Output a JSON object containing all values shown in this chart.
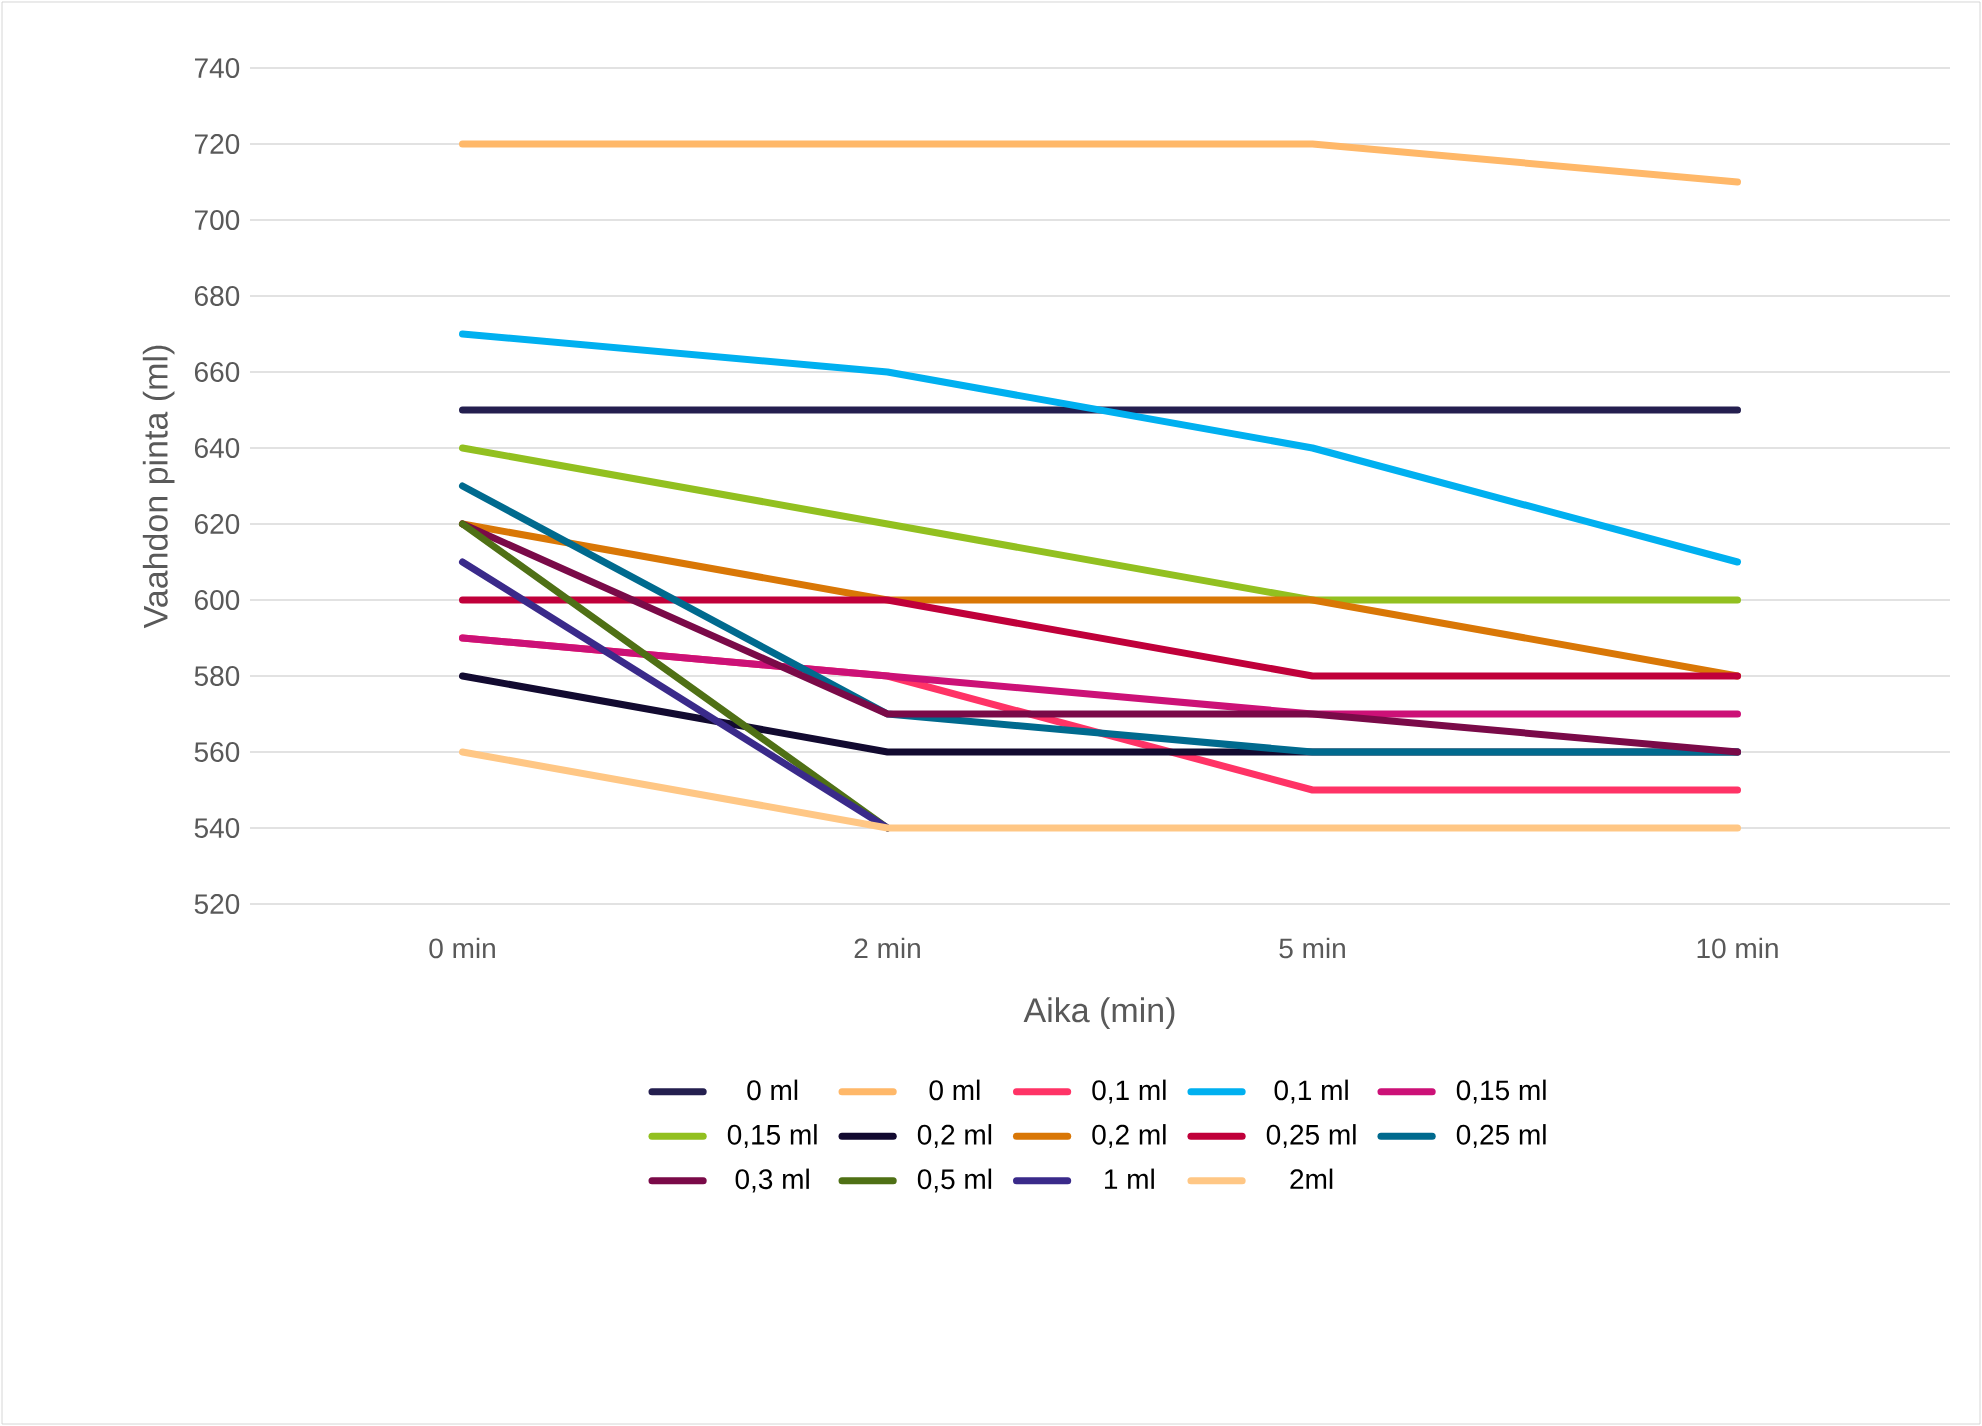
{
  "chart_data": {
    "type": "line",
    "xlabel": "Aika (min)",
    "ylabel": "Vaahdon pinta (ml)",
    "categories": [
      "0 min",
      "2 min",
      "5 min",
      "10 min"
    ],
    "ylim": [
      520,
      740
    ],
    "yticks": [
      520,
      540,
      560,
      580,
      600,
      620,
      640,
      660,
      680,
      700,
      720,
      740
    ],
    "grid": "y",
    "legend": "bottom",
    "marker": "none",
    "line_style": "solid",
    "series": [
      {
        "name": "0 ml",
        "color": "#241f4f",
        "values": [
          650,
          650,
          650,
          650
        ]
      },
      {
        "name": "0 ml",
        "color": "#ffb869",
        "values": [
          720,
          720,
          720,
          710
        ]
      },
      {
        "name": "0,1 ml",
        "color": "#ff3366",
        "values": [
          590,
          580,
          550,
          550
        ]
      },
      {
        "name": "0,1 ml",
        "color": "#00b0f0",
        "values": [
          670,
          660,
          640,
          610
        ]
      },
      {
        "name": "0,15 ml",
        "color": "#cc1177",
        "values": [
          590,
          580,
          570,
          570
        ]
      },
      {
        "name": "0,15 ml",
        "color": "#92c020",
        "values": [
          640,
          620,
          600,
          600
        ]
      },
      {
        "name": "0,2 ml",
        "color": "#120a30",
        "values": [
          580,
          560,
          560,
          560
        ]
      },
      {
        "name": "0,2 ml",
        "color": "#d97706",
        "values": [
          620,
          600,
          600,
          580
        ]
      },
      {
        "name": "0,25 ml",
        "color": "#c0003a",
        "values": [
          600,
          600,
          580,
          580
        ]
      },
      {
        "name": "0,25 ml",
        "color": "#006a8e",
        "values": [
          630,
          570,
          560,
          560
        ]
      },
      {
        "name": "0,3 ml",
        "color": "#7a0a48",
        "values": [
          620,
          570,
          570,
          560
        ]
      },
      {
        "name": "0,5 ml",
        "color": "#4f7015",
        "values": [
          620,
          540,
          null,
          null
        ]
      },
      {
        "name": "1 ml",
        "color": "#3a2a8a",
        "values": [
          610,
          540,
          null,
          null
        ]
      },
      {
        "name": "2ml",
        "color": "#ffc785",
        "values": [
          560,
          540,
          540,
          540
        ]
      }
    ]
  }
}
